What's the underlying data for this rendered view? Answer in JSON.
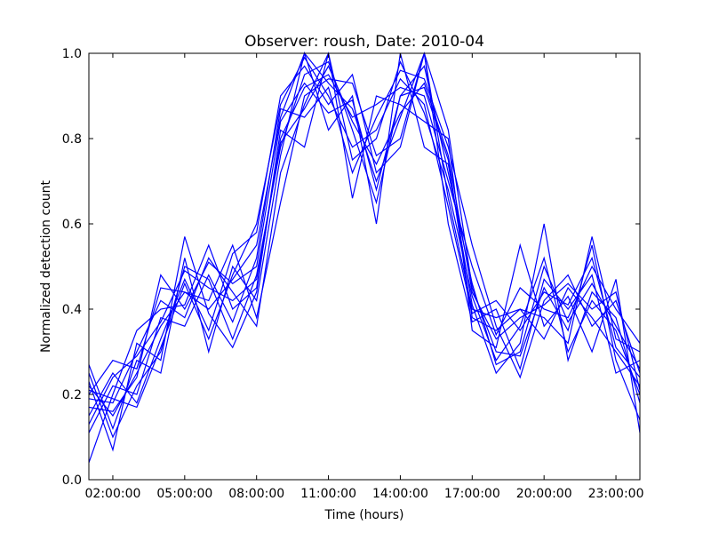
{
  "chart_data": {
    "type": "line",
    "title": "Observer: roush, Date: 2010-04",
    "xlabel": "Time (hours)",
    "ylabel": "Normalized detection count",
    "xlim": [
      "01:00:00",
      "24:00:00"
    ],
    "ylim": [
      0.0,
      1.0
    ],
    "x_ticks": [
      "02:00:00",
      "05:00:00",
      "08:00:00",
      "11:00:00",
      "14:00:00",
      "17:00:00",
      "20:00:00",
      "23:00:00"
    ],
    "x_tick_hours": [
      2,
      5,
      8,
      11,
      14,
      17,
      20,
      23
    ],
    "y_ticks": [
      "0.0",
      "0.2",
      "0.4",
      "0.6",
      "0.8",
      "1.0"
    ],
    "y_tick_values": [
      0.0,
      0.2,
      0.4,
      0.6,
      0.8,
      1.0
    ],
    "grid": false,
    "line_color": "#0000ff",
    "x_hours": [
      1,
      2,
      3,
      4,
      5,
      6,
      7,
      8,
      9,
      10,
      11,
      12,
      13,
      14,
      15,
      16,
      17,
      18,
      19,
      20,
      21,
      22,
      23,
      24
    ],
    "series": [
      {
        "values": [
          0.22,
          0.15,
          0.25,
          0.36,
          0.44,
          0.4,
          0.47,
          0.55,
          0.85,
          1.0,
          0.93,
          0.87,
          0.7,
          0.85,
          1.0,
          0.82,
          0.45,
          0.3,
          0.29,
          0.45,
          0.35,
          0.55,
          0.28,
          0.14
        ]
      },
      {
        "values": [
          0.25,
          0.1,
          0.22,
          0.3,
          0.5,
          0.47,
          0.33,
          0.48,
          0.78,
          0.95,
          0.98,
          0.82,
          0.65,
          0.9,
          0.92,
          0.75,
          0.38,
          0.35,
          0.4,
          0.33,
          0.45,
          0.38,
          0.3,
          0.22
        ]
      },
      {
        "values": [
          0.19,
          0.18,
          0.3,
          0.42,
          0.38,
          0.52,
          0.44,
          0.36,
          0.72,
          0.88,
          1.0,
          0.75,
          0.8,
          0.98,
          0.86,
          0.68,
          0.43,
          0.28,
          0.36,
          0.52,
          0.3,
          0.42,
          0.35,
          0.2
        ]
      },
      {
        "values": [
          0.15,
          0.25,
          0.18,
          0.33,
          0.47,
          0.35,
          0.53,
          0.58,
          0.9,
          0.97,
          0.88,
          0.95,
          0.72,
          0.78,
          1.0,
          0.6,
          0.37,
          0.4,
          0.26,
          0.47,
          0.4,
          0.48,
          0.25,
          0.28
        ]
      },
      {
        "values": [
          0.04,
          0.2,
          0.35,
          0.4,
          0.41,
          0.55,
          0.4,
          0.45,
          0.8,
          0.92,
          0.95,
          0.85,
          0.88,
          0.92,
          0.9,
          0.7,
          0.5,
          0.34,
          0.45,
          0.4,
          0.38,
          0.5,
          0.4,
          0.32
        ]
      },
      {
        "values": [
          0.27,
          0.12,
          0.28,
          0.25,
          0.52,
          0.3,
          0.5,
          0.42,
          0.76,
          1.0,
          0.82,
          0.9,
          0.6,
          1.0,
          0.78,
          0.74,
          0.41,
          0.25,
          0.32,
          0.6,
          0.28,
          0.44,
          0.38,
          0.18
        ]
      },
      {
        "values": [
          0.11,
          0.22,
          0.2,
          0.38,
          0.36,
          0.48,
          0.37,
          0.52,
          0.87,
          0.85,
          0.92,
          0.72,
          0.85,
          0.96,
          0.94,
          0.78,
          0.55,
          0.36,
          0.24,
          0.42,
          0.48,
          0.36,
          0.42,
          0.25
        ]
      },
      {
        "values": [
          0.2,
          0.28,
          0.26,
          0.45,
          0.44,
          0.42,
          0.55,
          0.38,
          0.65,
          0.9,
          0.94,
          0.93,
          0.76,
          0.8,
          1.0,
          0.66,
          0.4,
          0.38,
          0.4,
          0.38,
          0.32,
          0.57,
          0.33,
          0.3
        ]
      },
      {
        "values": [
          0.23,
          0.07,
          0.32,
          0.28,
          0.57,
          0.39,
          0.31,
          0.44,
          0.82,
          0.78,
          1.0,
          0.66,
          0.9,
          0.88,
          0.84,
          0.8,
          0.35,
          0.31,
          0.55,
          0.36,
          0.43,
          0.3,
          0.47,
          0.11
        ]
      },
      {
        "values": [
          0.17,
          0.16,
          0.24,
          0.48,
          0.4,
          0.51,
          0.46,
          0.5,
          0.84,
          0.93,
          0.86,
          0.89,
          0.68,
          0.9,
          0.97,
          0.72,
          0.46,
          0.27,
          0.3,
          0.5,
          0.37,
          0.46,
          0.36,
          0.26
        ]
      },
      {
        "values": [
          0.21,
          0.19,
          0.17,
          0.31,
          0.46,
          0.33,
          0.48,
          0.6,
          0.88,
          0.99,
          0.9,
          0.78,
          0.82,
          0.94,
          0.88,
          0.64,
          0.39,
          0.42,
          0.35,
          0.44,
          0.41,
          0.52,
          0.31,
          0.24
        ]
      },
      {
        "values": [
          0.13,
          0.24,
          0.29,
          0.37,
          0.49,
          0.45,
          0.42,
          0.47,
          0.79,
          0.87,
          0.97,
          0.84,
          0.74,
          0.86,
          0.93,
          0.76,
          0.44,
          0.33,
          0.38,
          0.41,
          0.46,
          0.4,
          0.44,
          0.21
        ]
      }
    ]
  }
}
